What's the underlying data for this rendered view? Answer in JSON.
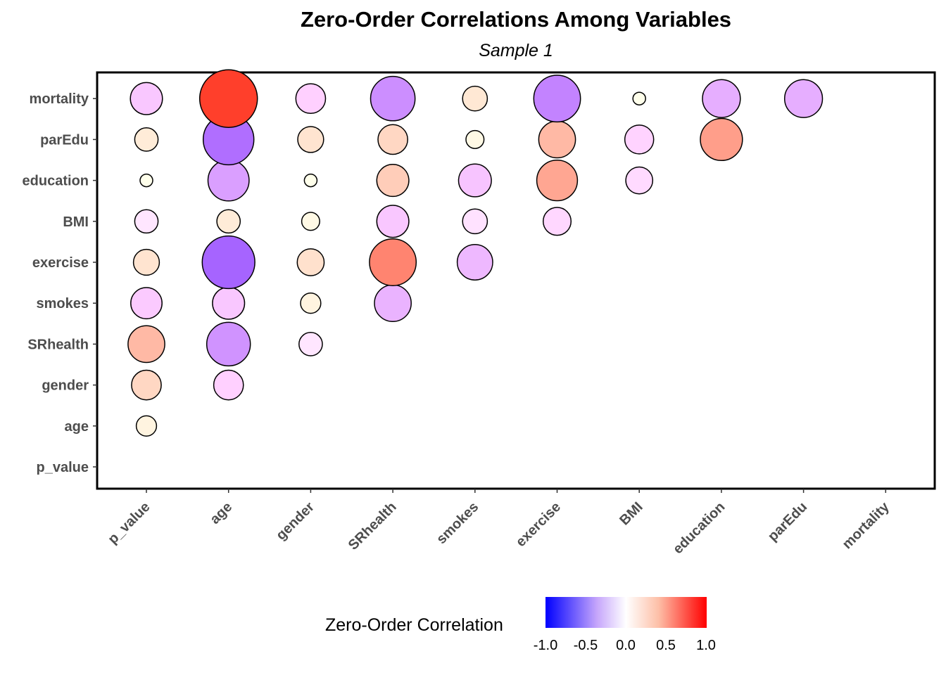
{
  "chart_data": {
    "type": "bubble-correlation",
    "title": "Zero-Order Correlations Among Variables",
    "subtitle": "Sample 1",
    "variables": [
      "p_value",
      "age",
      "gender",
      "SRhealth",
      "smokes",
      "exercise",
      "BMI",
      "education",
      "parEdu",
      "mortality"
    ],
    "points": [
      {
        "x": "p_value",
        "y": "age",
        "r": 0.02
      },
      {
        "x": "p_value",
        "y": "gender",
        "r": 0.1
      },
      {
        "x": "p_value",
        "y": "SRhealth",
        "r": 0.2
      },
      {
        "x": "p_value",
        "y": "smokes",
        "r": -0.12
      },
      {
        "x": "p_value",
        "y": "exercise",
        "r": 0.06
      },
      {
        "x": "p_value",
        "y": "BMI",
        "r": -0.04
      },
      {
        "x": "p_value",
        "y": "education",
        "r": 0.0
      },
      {
        "x": "p_value",
        "y": "parEdu",
        "r": 0.04
      },
      {
        "x": "p_value",
        "y": "mortality",
        "r": -0.13
      },
      {
        "x": "age",
        "y": "gender",
        "r": -0.1
      },
      {
        "x": "age",
        "y": "SRhealth",
        "r": -0.33
      },
      {
        "x": "age",
        "y": "smokes",
        "r": -0.13
      },
      {
        "x": "age",
        "y": "exercise",
        "r": -0.55
      },
      {
        "x": "age",
        "y": "BMI",
        "r": 0.04
      },
      {
        "x": "age",
        "y": "education",
        "r": -0.28
      },
      {
        "x": "age",
        "y": "parEdu",
        "r": -0.5
      },
      {
        "x": "age",
        "y": "mortality",
        "r": 0.7
      },
      {
        "x": "gender",
        "y": "SRhealth",
        "r": -0.04
      },
      {
        "x": "gender",
        "y": "smokes",
        "r": 0.02
      },
      {
        "x": "gender",
        "y": "exercise",
        "r": 0.07
      },
      {
        "x": "gender",
        "y": "BMI",
        "r": 0.01
      },
      {
        "x": "gender",
        "y": "education",
        "r": 0.0
      },
      {
        "x": "gender",
        "y": "parEdu",
        "r": 0.06
      },
      {
        "x": "gender",
        "y": "mortality",
        "r": -0.1
      },
      {
        "x": "SRhealth",
        "y": "smokes",
        "r": -0.2
      },
      {
        "x": "SRhealth",
        "y": "exercise",
        "r": 0.4
      },
      {
        "x": "SRhealth",
        "y": "BMI",
        "r": -0.13
      },
      {
        "x": "SRhealth",
        "y": "education",
        "r": 0.13
      },
      {
        "x": "SRhealth",
        "y": "parEdu",
        "r": 0.1
      },
      {
        "x": "SRhealth",
        "y": "mortality",
        "r": -0.35
      },
      {
        "x": "smokes",
        "y": "exercise",
        "r": -0.18
      },
      {
        "x": "smokes",
        "y": "BMI",
        "r": -0.05
      },
      {
        "x": "smokes",
        "y": "education",
        "r": -0.14
      },
      {
        "x": "smokes",
        "y": "parEdu",
        "r": 0.01
      },
      {
        "x": "smokes",
        "y": "mortality",
        "r": 0.05
      },
      {
        "x": "exercise",
        "y": "BMI",
        "r": -0.08
      },
      {
        "x": "exercise",
        "y": "education",
        "r": 0.27
      },
      {
        "x": "exercise",
        "y": "parEdu",
        "r": 0.2
      },
      {
        "x": "exercise",
        "y": "mortality",
        "r": -0.4
      },
      {
        "x": "BMI",
        "y": "education",
        "r": -0.07
      },
      {
        "x": "BMI",
        "y": "parEdu",
        "r": -0.09
      },
      {
        "x": "BMI",
        "y": "mortality",
        "r": 0.0
      },
      {
        "x": "education",
        "y": "parEdu",
        "r": 0.3
      },
      {
        "x": "education",
        "y": "mortality",
        "r": -0.22
      },
      {
        "x": "parEdu",
        "y": "mortality",
        "r": -0.22
      }
    ],
    "legend": {
      "title": "Zero-Order Correlation",
      "ticks": [
        "-1.0",
        "-0.5",
        "0.0",
        "0.5",
        "1.0"
      ],
      "range": [
        -1,
        1
      ],
      "colors": {
        "low": "#0000ff",
        "mid": "#ffffff",
        "high": "#ff0000"
      },
      "position": "bottom"
    }
  }
}
